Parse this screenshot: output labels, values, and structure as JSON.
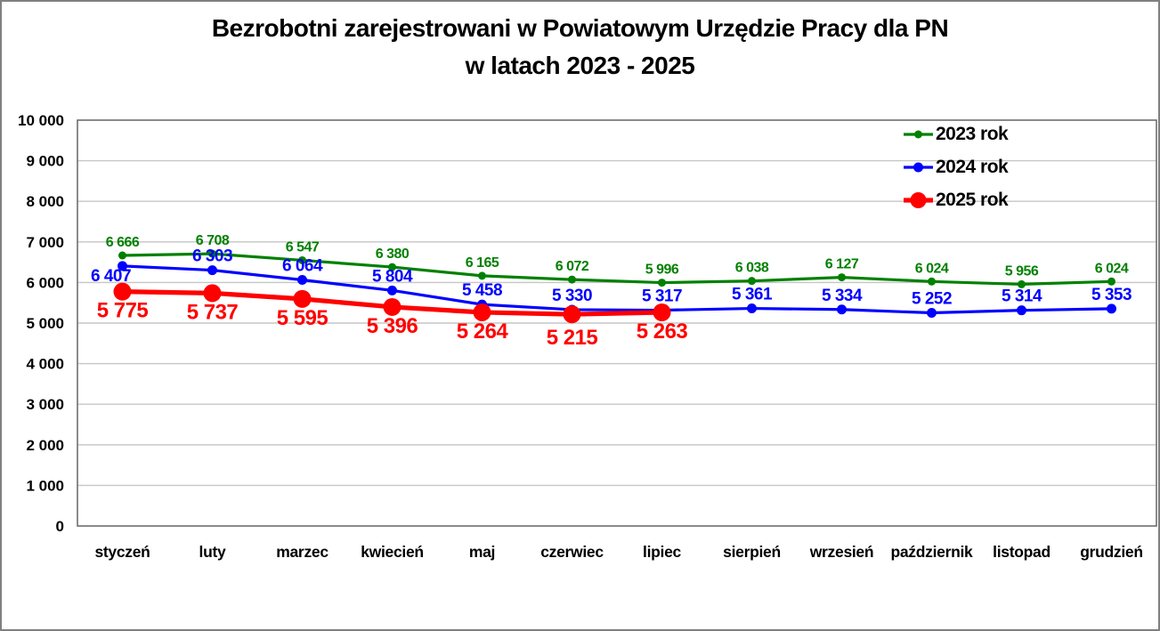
{
  "title": {
    "line1": "Bezrobotni zarejestrowani w Powiatowym Urzędzie Pracy dla PN",
    "line2": "w latach 2023 - 2025"
  },
  "chart_data": {
    "type": "line",
    "title": "Bezrobotni zarejestrowani w Powiatowym Urzędzie Pracy dla PN w latach 2023 - 2025",
    "categories": [
      "styczeń",
      "luty",
      "marzec",
      "kwiecień",
      "maj",
      "czerwiec",
      "lipiec",
      "sierpień",
      "wrzesień",
      "październik",
      "listopad",
      "grudzień"
    ],
    "series": [
      {
        "name": "2023 rok",
        "color": "#008000",
        "values": [
          6666,
          6708,
          6547,
          6380,
          6165,
          6072,
          5996,
          6038,
          6127,
          6024,
          5956,
          6024
        ],
        "labels": [
          "6 666",
          "6 708",
          "6 547",
          "6 380",
          "6 165",
          "6 072",
          "5 996",
          "6 038",
          "6 127",
          "6 024",
          "5 956",
          "6 024"
        ]
      },
      {
        "name": "2024 rok",
        "color": "#0000ff",
        "values": [
          6407,
          6303,
          6064,
          5804,
          5458,
          5330,
          5317,
          5361,
          5334,
          5252,
          5314,
          5353
        ],
        "labels": [
          "6 407",
          "6 303",
          "6 064",
          "5 804",
          "5 458",
          "5 330",
          "5 317",
          "5 361",
          "5 334",
          "5 252",
          "5 314",
          "5 353"
        ]
      },
      {
        "name": "2025 rok",
        "color": "#ff0000",
        "values": [
          5775,
          5737,
          5595,
          5396,
          5264,
          5215,
          5263
        ],
        "labels": [
          "5 775",
          "5 737",
          "5 595",
          "5 396",
          "5 264",
          "5 215",
          "5 263"
        ]
      }
    ],
    "ylim": [
      0,
      10000
    ],
    "ytick_step": 1000,
    "ytick_labels": [
      "0",
      "1 000",
      "2 000",
      "3 000",
      "4 000",
      "5 000",
      "6 000",
      "7 000",
      "8 000",
      "9 000",
      "10 000"
    ],
    "grid": true,
    "legend_position": "top-right",
    "xlabel": "",
    "ylabel": ""
  },
  "style_colors": {
    "gridline": "#c6c6c6",
    "frame": "#6e6e6e",
    "axis_text": "#000000",
    "background": "#ffffff"
  }
}
